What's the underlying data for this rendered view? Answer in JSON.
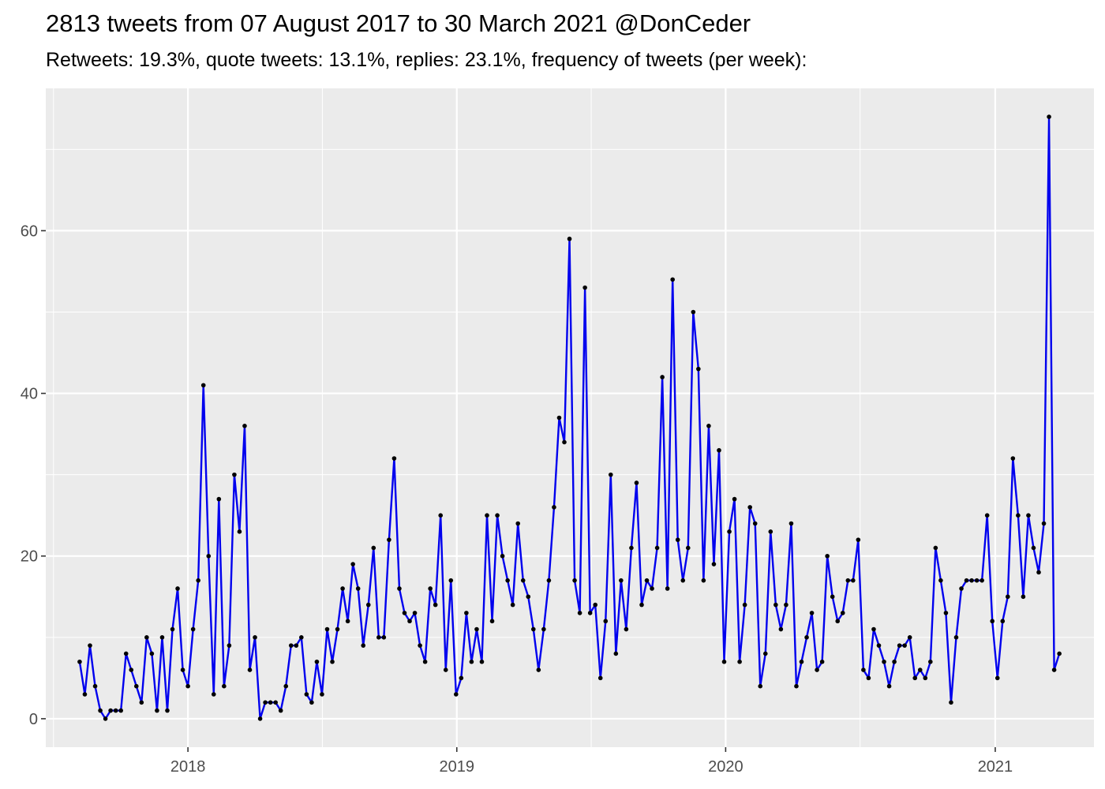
{
  "title": "2813 tweets from 07 August 2017 to 30 March 2021 @DonCeder",
  "subtitle": "Retweets: 19.3%, quote tweets: 13.1%, replies: 23.1%, frequency of tweets (per week):",
  "chart_data": {
    "type": "line",
    "title": "2813 tweets from 07 August 2017 to 30 March 2021 @DonCeder",
    "subtitle": "Retweets: 19.3%, quote tweets: 13.1%, replies: 23.1%, frequency of tweets (per week):",
    "xlabel": "",
    "ylabel": "",
    "x_type": "date",
    "x_start": "2017-08-07",
    "x_step_days": 7,
    "xlim": [
      "2017-06-22",
      "2021-05-15"
    ],
    "ylim": [
      -3.5,
      77.5
    ],
    "x_ticks": [
      {
        "date": "2018-01-01",
        "label": "2018"
      },
      {
        "date": "2019-01-01",
        "label": "2019"
      },
      {
        "date": "2020-01-01",
        "label": "2020"
      },
      {
        "date": "2021-01-01",
        "label": "2021"
      }
    ],
    "y_ticks": [
      0,
      20,
      40,
      60
    ],
    "grid": true,
    "line_color": "#0000ee",
    "point_color": "#000000",
    "panel_background": "#ebebeb",
    "series": [
      {
        "values": [
          7,
          3,
          9,
          4,
          1,
          0,
          1,
          1,
          1,
          8,
          6,
          4,
          2,
          10,
          8,
          1,
          10,
          1,
          11,
          16,
          6,
          4,
          11,
          17,
          41,
          20,
          3,
          27,
          4,
          9,
          30,
          23,
          36,
          6,
          10,
          0,
          2,
          2,
          2,
          1,
          4,
          9,
          9,
          10,
          3,
          2,
          7,
          3,
          11,
          7,
          11,
          16,
          12,
          19,
          16,
          9,
          14,
          21,
          10,
          10,
          22,
          32,
          16,
          13,
          12,
          13,
          9,
          7,
          16,
          14,
          25,
          6,
          17,
          3,
          5,
          13,
          7,
          11,
          7,
          25,
          12,
          25,
          20,
          17,
          14,
          24,
          17,
          15,
          11,
          6,
          11,
          17,
          26,
          37,
          34,
          59,
          17,
          13,
          53,
          13,
          14,
          5,
          12,
          30,
          8,
          17,
          11,
          21,
          29,
          14,
          17,
          16,
          21,
          42,
          16,
          54,
          22,
          17,
          21,
          50,
          43,
          17,
          36,
          19,
          33,
          7,
          23,
          27,
          7,
          14,
          26,
          24,
          4,
          8,
          23,
          14,
          11,
          14,
          24,
          4,
          7,
          10,
          13,
          6,
          7,
          20,
          15,
          12,
          13,
          17,
          17,
          22,
          6,
          5,
          11,
          9,
          7,
          4,
          7,
          9,
          9,
          10,
          5,
          6,
          5,
          7,
          21,
          17,
          13,
          2,
          10,
          16,
          17,
          17,
          17,
          17,
          25,
          12,
          5,
          12,
          15,
          32,
          25,
          15,
          25,
          21,
          18,
          24,
          74,
          6,
          8
        ]
      }
    ]
  }
}
